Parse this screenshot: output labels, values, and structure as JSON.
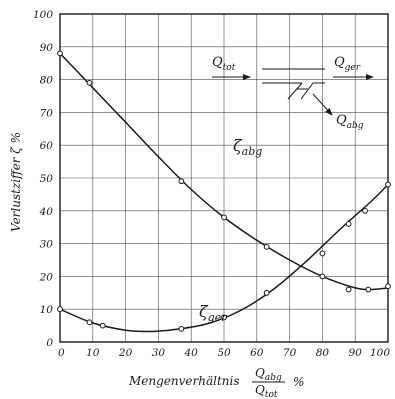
{
  "chart_data": {
    "type": "line",
    "title": "",
    "xlabel": {
      "prefix": "Mengenverhältnis",
      "numerator_base": "Q",
      "numerator_sub": "abg",
      "denominator_base": "Q",
      "denominator_sub": "tot",
      "unit": "%"
    },
    "ylabel": "Verlustziffer  ζ %",
    "xlim": [
      0,
      100
    ],
    "ylim": [
      0,
      100
    ],
    "xticks": [
      "0",
      "10",
      "20",
      "30",
      "40",
      "50",
      "60",
      "70",
      "80",
      "90",
      "100"
    ],
    "yticks": [
      "0",
      "10",
      "20",
      "30",
      "40",
      "50",
      "60",
      "70",
      "80",
      "90",
      "100"
    ],
    "grid": true,
    "series": [
      {
        "name": "ζ abg",
        "label_base": "ζ",
        "label_sub": "abg",
        "points": [
          [
            0,
            88
          ],
          [
            9,
            79
          ],
          [
            37,
            49
          ],
          [
            50,
            38
          ],
          [
            63,
            29
          ],
          [
            80,
            20
          ],
          [
            88,
            16
          ],
          [
            94,
            16
          ],
          [
            100,
            17
          ]
        ],
        "curve": [
          [
            0,
            88
          ],
          [
            10,
            77.5
          ],
          [
            20,
            67
          ],
          [
            30,
            56.5
          ],
          [
            40,
            46.5
          ],
          [
            50,
            38
          ],
          [
            60,
            31
          ],
          [
            70,
            25
          ],
          [
            80,
            20
          ],
          [
            90,
            16.5
          ],
          [
            95,
            16
          ],
          [
            100,
            16.5
          ]
        ]
      },
      {
        "name": "ζ ger",
        "label_base": "ζ",
        "label_sub": "ger",
        "points": [
          [
            0,
            10
          ],
          [
            9,
            6
          ],
          [
            13,
            5
          ],
          [
            37,
            4
          ],
          [
            50,
            7.5
          ],
          [
            63,
            15
          ],
          [
            80,
            27
          ],
          [
            88,
            36
          ],
          [
            93,
            40
          ],
          [
            100,
            48
          ]
        ],
        "curve": [
          [
            0,
            10
          ],
          [
            10,
            5.8
          ],
          [
            20,
            3.6
          ],
          [
            27,
            3.2
          ],
          [
            35,
            3.8
          ],
          [
            45,
            5.6
          ],
          [
            55,
            9.6
          ],
          [
            65,
            16
          ],
          [
            75,
            24.5
          ],
          [
            85,
            34
          ],
          [
            95,
            43
          ],
          [
            100,
            48
          ]
        ]
      }
    ],
    "inset_diagram": {
      "q_tot_base": "Q",
      "q_tot_sub": "tot",
      "q_ger_base": "Q",
      "q_ger_sub": "ger",
      "q_abg_base": "Q",
      "q_abg_sub": "abg"
    }
  }
}
